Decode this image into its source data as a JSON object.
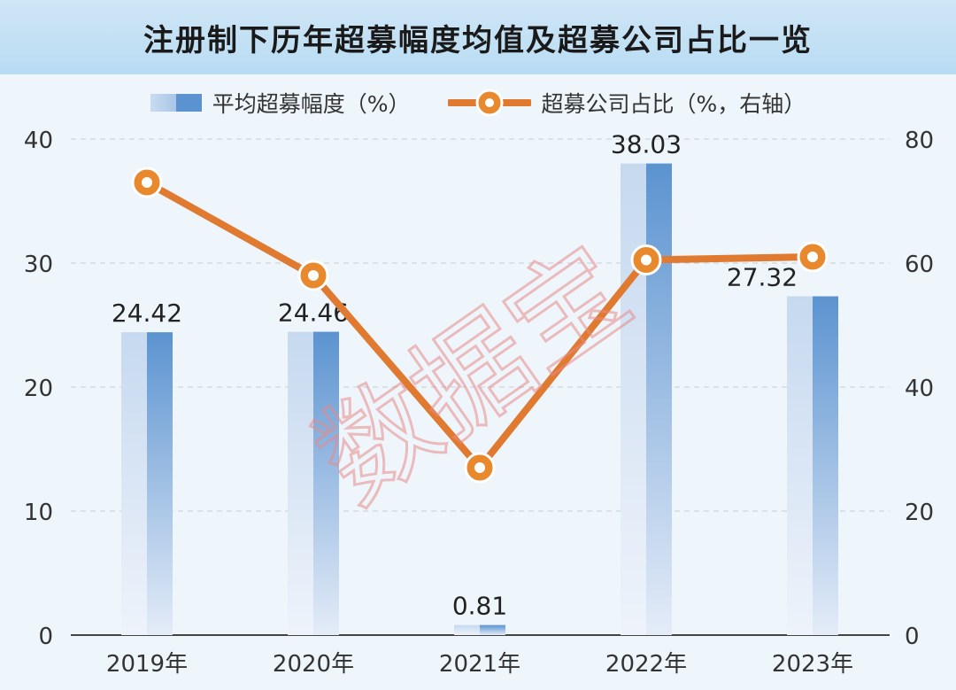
{
  "chart_data": {
    "type": "bar+line",
    "title": "注册制下历年超募幅度均值及超募公司占比一览",
    "categories": [
      "2019年",
      "2020年",
      "2021年",
      "2022年",
      "2023年"
    ],
    "series": [
      {
        "name": "平均超募幅度（%）",
        "type": "bar",
        "axis": "left",
        "values": [
          24.42,
          24.46,
          0.81,
          38.03,
          27.32
        ],
        "labels": [
          "24.42",
          "24.46",
          "0.81",
          "38.03",
          "27.32"
        ],
        "color": "#5b93d0"
      },
      {
        "name": "超募公司占比（%，右轴）",
        "type": "line",
        "axis": "right",
        "values": [
          73,
          58,
          27,
          60.5,
          61
        ],
        "color": "#e07a30"
      }
    ],
    "left_axis": {
      "range": [
        0,
        40
      ],
      "ticks": [
        "0",
        "10",
        "20",
        "30",
        "40"
      ]
    },
    "right_axis": {
      "range": [
        0,
        80
      ],
      "ticks": [
        "0",
        "20",
        "40",
        "60",
        "80"
      ]
    },
    "grid": true,
    "legend": "top-center",
    "watermark": "数据宝"
  }
}
